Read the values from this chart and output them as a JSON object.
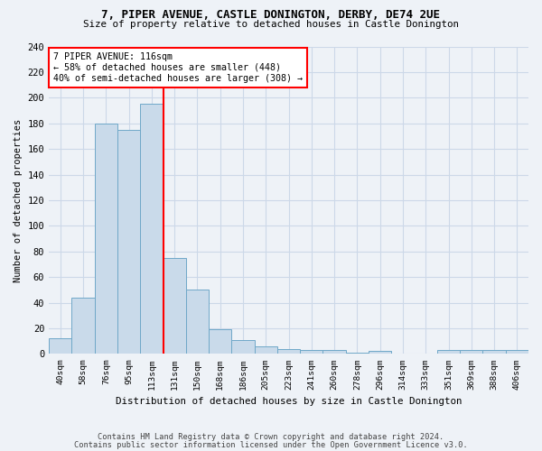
{
  "title_line1": "7, PIPER AVENUE, CASTLE DONINGTON, DERBY, DE74 2UE",
  "title_line2": "Size of property relative to detached houses in Castle Donington",
  "xlabel": "Distribution of detached houses by size in Castle Donington",
  "ylabel": "Number of detached properties",
  "bar_color": "#c9daea",
  "bar_edge_color": "#6fa8c8",
  "grid_color": "#ccd8e8",
  "tick_labels": [
    "40sqm",
    "58sqm",
    "76sqm",
    "95sqm",
    "113sqm",
    "131sqm",
    "150sqm",
    "168sqm",
    "186sqm",
    "205sqm",
    "223sqm",
    "241sqm",
    "260sqm",
    "278sqm",
    "296sqm",
    "314sqm",
    "333sqm",
    "351sqm",
    "369sqm",
    "388sqm",
    "406sqm"
  ],
  "bar_heights": [
    12,
    44,
    180,
    175,
    195,
    75,
    50,
    19,
    11,
    6,
    4,
    3,
    3,
    1,
    2,
    0,
    0,
    3,
    3,
    3,
    3
  ],
  "ylim": [
    0,
    240
  ],
  "yticks": [
    0,
    20,
    40,
    60,
    80,
    100,
    120,
    140,
    160,
    180,
    200,
    220,
    240
  ],
  "red_line_x": 4.5,
  "annotation_text": "7 PIPER AVENUE: 116sqm\n← 58% of detached houses are smaller (448)\n40% of semi-detached houses are larger (308) →",
  "annotation_box_color": "white",
  "annotation_box_edge_color": "red",
  "footer_line1": "Contains HM Land Registry data © Crown copyright and database right 2024.",
  "footer_line2": "Contains public sector information licensed under the Open Government Licence v3.0.",
  "background_color": "#eef2f7"
}
